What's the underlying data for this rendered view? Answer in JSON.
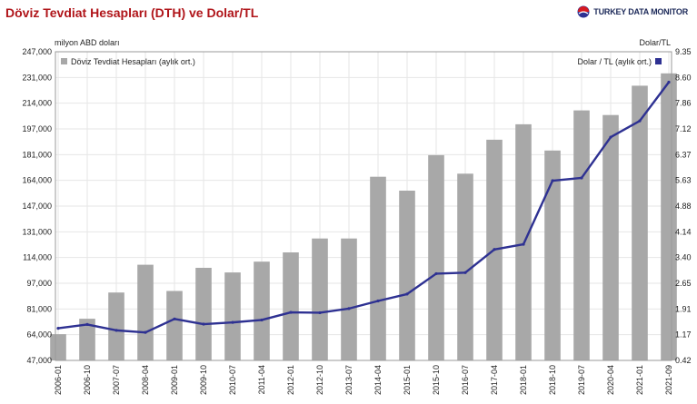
{
  "header": {
    "title": "Döviz Tevdiat Hesapları (DTH) ve Dolar/TL",
    "brand": "TURKEY DATA MONITOR"
  },
  "colors": {
    "title": "#b0151a",
    "bars": "#a8a8a8",
    "line": "#2e3192",
    "grid": "#e6e6e6"
  },
  "chart_data": {
    "type": "bar",
    "combo": "bar+line",
    "left_axis": {
      "label": "milyon ABD doları",
      "range": [
        47000,
        247000
      ],
      "ticks": [
        "247,000",
        "231,000",
        "214,000",
        "197,000",
        "181,000",
        "164,000",
        "147,000",
        "131,000",
        "114,000",
        "97,000",
        "81,000",
        "64,000",
        "47,000"
      ]
    },
    "right_axis": {
      "label": "Dolar/TL",
      "range": [
        0.42,
        9.35
      ],
      "ticks": [
        "9.35",
        "8.60",
        "7.86",
        "7.12",
        "6.37",
        "5.63",
        "4.88",
        "4.14",
        "3.40",
        "2.65",
        "1.91",
        "1.17",
        "0.42"
      ]
    },
    "x_tick_labels": [
      "2006-01",
      "2006-10",
      "2007-07",
      "2008-04",
      "2009-01",
      "2009-10",
      "2010-07",
      "2011-04",
      "2012-01",
      "2012-10",
      "2013-07",
      "2014-04",
      "2015-01",
      "2015-10",
      "2016-07",
      "2017-04",
      "2018-01",
      "2018-10",
      "2019-07",
      "2020-04",
      "2021-01",
      "2021-09"
    ],
    "grid": true,
    "legend": [
      {
        "label": "Döviz Tevdiat Hesapları (aylık ort.)",
        "position": "top-left"
      },
      {
        "label": "Dolar / TL (aylık ort.)",
        "position": "top-right"
      }
    ],
    "series": [
      {
        "name": "Döviz Tevdiat Hesapları (aylık ort.)",
        "axis": "left",
        "type": "bar",
        "x": [
          "2006-01",
          "2006-10",
          "2007-07",
          "2008-04",
          "2009-01",
          "2009-10",
          "2010-07",
          "2011-04",
          "2012-01",
          "2012-10",
          "2013-07",
          "2014-04",
          "2015-01",
          "2015-10",
          "2016-07",
          "2017-04",
          "2018-01",
          "2018-10",
          "2019-07",
          "2020-04",
          "2021-01",
          "2021-09"
        ],
        "values": [
          64000,
          74000,
          91000,
          109000,
          92000,
          107000,
          104000,
          111000,
          117000,
          126000,
          126000,
          166000,
          157000,
          180000,
          168000,
          190000,
          200000,
          183000,
          209000,
          206000,
          225000,
          233000
        ]
      },
      {
        "name": "Dolar / TL (aylık ort.)",
        "axis": "right",
        "type": "line",
        "x": [
          "2006-01",
          "2006-10",
          "2007-07",
          "2008-04",
          "2009-01",
          "2009-10",
          "2010-07",
          "2011-04",
          "2012-01",
          "2012-10",
          "2013-07",
          "2014-04",
          "2015-01",
          "2015-10",
          "2016-07",
          "2017-04",
          "2018-01",
          "2018-10",
          "2019-07",
          "2020-04",
          "2021-01",
          "2021-09"
        ],
        "values": [
          1.35,
          1.46,
          1.29,
          1.23,
          1.62,
          1.47,
          1.52,
          1.59,
          1.81,
          1.8,
          1.92,
          2.14,
          2.34,
          2.93,
          2.96,
          3.63,
          3.78,
          5.62,
          5.7,
          6.88,
          7.35,
          8.47
        ]
      }
    ]
  }
}
